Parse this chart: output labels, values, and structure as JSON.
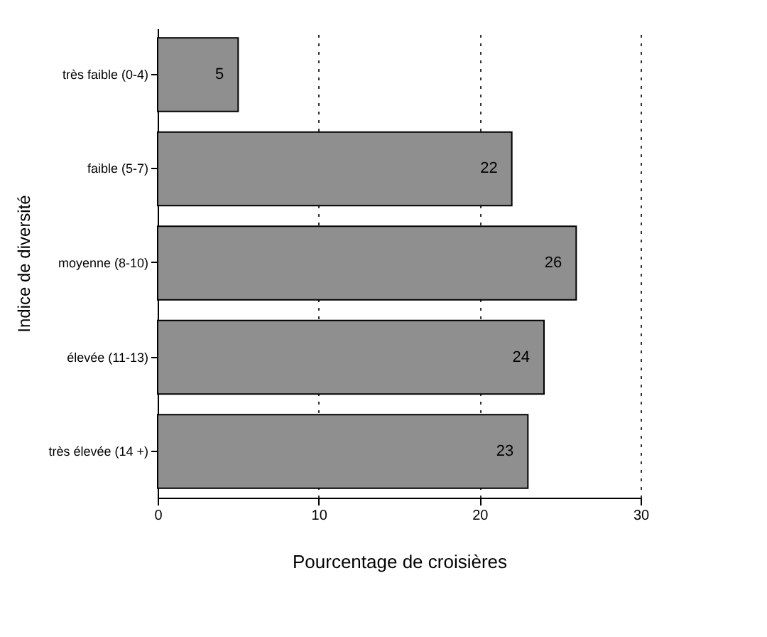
{
  "chart_data": {
    "type": "bar",
    "orientation": "horizontal",
    "categories": [
      "très faible (0-4)",
      "faible (5-7)",
      "moyenne (8-10)",
      "élevée (11-13)",
      "très élevée (14 +)"
    ],
    "values": [
      5,
      22,
      26,
      24,
      23
    ],
    "color": "#8f8f8f",
    "xlim": [
      0,
      30
    ],
    "xticks": [
      0,
      10,
      20,
      30
    ],
    "grid": "x",
    "line_style": "dotted",
    "data_labels": true,
    "xlabel": "Pourcentage de croisières",
    "ylabel": "Indice de diversité"
  }
}
